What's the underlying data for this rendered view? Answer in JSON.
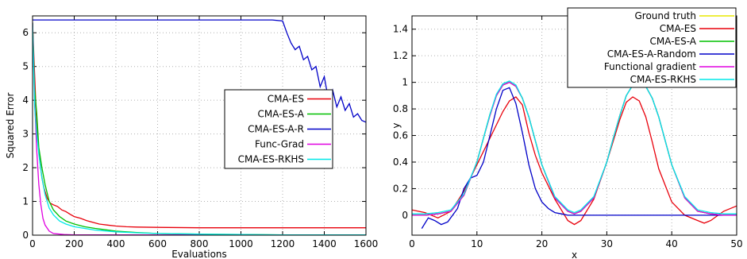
{
  "chart_data": [
    {
      "type": "line",
      "title": "",
      "xlabel": "Evaluations",
      "ylabel": "Squared Error",
      "xlim": [
        0,
        1600
      ],
      "ylim": [
        0,
        6.5
      ],
      "xticks": [
        "0",
        "200",
        "400",
        "600",
        "800",
        "1000",
        "1200",
        "1400",
        "1600"
      ],
      "yticks": [
        "0",
        "1",
        "2",
        "3",
        "4",
        "5",
        "6"
      ],
      "grid": true,
      "legend_position": "right",
      "series": [
        {
          "name": "CMA-ES",
          "color": "#e8000b",
          "x": [
            0,
            20,
            35,
            45,
            55,
            70,
            85,
            100,
            120,
            140,
            160,
            180,
            200,
            230,
            260,
            290,
            320,
            360,
            400,
            450,
            500,
            600,
            800,
            1000,
            1200,
            1400,
            1600
          ],
          "y": [
            6.3,
            3.2,
            2.2,
            1.7,
            1.4,
            1.1,
            0.95,
            0.9,
            0.85,
            0.75,
            0.7,
            0.62,
            0.55,
            0.5,
            0.43,
            0.38,
            0.33,
            0.3,
            0.27,
            0.25,
            0.24,
            0.23,
            0.22,
            0.22,
            0.22,
            0.22,
            0.22
          ]
        },
        {
          "name": "CMA-ES-A",
          "color": "#00c000",
          "x": [
            0,
            10,
            20,
            30,
            45,
            60,
            80,
            100,
            130,
            160,
            200,
            250,
            300,
            400,
            500,
            600,
            800,
            1000,
            1200,
            1400,
            1600
          ],
          "y": [
            6.3,
            4.35,
            3.6,
            2.6,
            2.0,
            1.5,
            1.0,
            0.75,
            0.55,
            0.42,
            0.33,
            0.25,
            0.2,
            0.12,
            0.08,
            0.05,
            0.03,
            0.02,
            0.01,
            0.01,
            0.01
          ]
        },
        {
          "name": "CMA-ES-A-R",
          "color": "#0000c8",
          "x": [
            0,
            200,
            400,
            600,
            800,
            1000,
            1150,
            1200,
            1220,
            1240,
            1260,
            1280,
            1300,
            1320,
            1340,
            1360,
            1380,
            1400,
            1420,
            1440,
            1460,
            1480,
            1500,
            1520,
            1540,
            1560,
            1580,
            1600
          ],
          "y": [
            6.38,
            6.38,
            6.38,
            6.38,
            6.38,
            6.38,
            6.38,
            6.35,
            6.0,
            5.7,
            5.5,
            5.6,
            5.2,
            5.3,
            4.9,
            5.0,
            4.4,
            4.7,
            4.0,
            4.3,
            3.8,
            4.1,
            3.7,
            3.9,
            3.5,
            3.6,
            3.4,
            3.35
          ]
        },
        {
          "name": "Func-Grad",
          "color": "#e000e0",
          "x": [
            0,
            10,
            20,
            30,
            40,
            50,
            60,
            80,
            100,
            150,
            200,
            400,
            800,
            1200,
            1600
          ],
          "y": [
            6.3,
            4.0,
            2.5,
            1.5,
            0.9,
            0.5,
            0.3,
            0.12,
            0.05,
            0.02,
            0.01,
            0.01,
            0.01,
            0.01,
            0.01
          ]
        },
        {
          "name": "CMA-ES-RKHS",
          "color": "#00e8e8",
          "x": [
            0,
            10,
            20,
            30,
            45,
            60,
            80,
            100,
            130,
            160,
            200,
            250,
            300,
            400,
            500,
            600,
            800,
            1000,
            1200,
            1400,
            1600
          ],
          "y": [
            6.3,
            3.8,
            3.0,
            2.4,
            1.7,
            1.2,
            0.8,
            0.6,
            0.42,
            0.33,
            0.25,
            0.2,
            0.15,
            0.1,
            0.07,
            0.05,
            0.03,
            0.02,
            0.01,
            0.01,
            0.01
          ]
        }
      ]
    },
    {
      "type": "line",
      "title": "",
      "xlabel": "x",
      "ylabel": "y",
      "xlim": [
        0,
        50
      ],
      "ylim": [
        -0.15,
        1.5
      ],
      "xticks": [
        "0",
        "10",
        "20",
        "30",
        "40",
        "50"
      ],
      "yticks": [
        "0",
        "0.2",
        "0.4",
        "0.6",
        "0.8",
        "1",
        "1.2",
        "1.4"
      ],
      "grid": true,
      "legend_position": "top-right",
      "series": [
        {
          "name": "Ground truth",
          "color": "#e8e800",
          "x": [
            0,
            2,
            4,
            6,
            8,
            10,
            11,
            12,
            13,
            14,
            15,
            16,
            17,
            18,
            19,
            20,
            22,
            24,
            25,
            26,
            28,
            30,
            31,
            32,
            33,
            34,
            35,
            36,
            37,
            38,
            39,
            40,
            42,
            44,
            46,
            48,
            50
          ],
          "y": [
            0,
            0,
            0.01,
            0.03,
            0.15,
            0.4,
            0.58,
            0.75,
            0.9,
            0.98,
            1.0,
            0.97,
            0.88,
            0.74,
            0.56,
            0.38,
            0.13,
            0.03,
            0.01,
            0.03,
            0.13,
            0.4,
            0.58,
            0.75,
            0.9,
            0.98,
            1.0,
            0.97,
            0.88,
            0.74,
            0.56,
            0.38,
            0.13,
            0.03,
            0.01,
            0,
            0
          ]
        },
        {
          "name": "CMA-ES",
          "color": "#e8000b",
          "x": [
            0,
            2,
            4,
            6,
            8,
            10,
            12,
            14,
            15,
            16,
            17,
            18,
            19,
            20,
            22,
            24,
            25,
            26,
            28,
            30,
            32,
            33,
            34,
            35,
            36,
            37,
            38,
            40,
            42,
            44,
            45,
            46,
            48,
            50
          ],
          "y": [
            0.04,
            0.02,
            -0.02,
            0.03,
            0.18,
            0.38,
            0.58,
            0.78,
            0.86,
            0.89,
            0.83,
            0.62,
            0.45,
            0.32,
            0.12,
            -0.04,
            -0.07,
            -0.04,
            0.12,
            0.4,
            0.72,
            0.85,
            0.89,
            0.86,
            0.74,
            0.55,
            0.35,
            0.1,
            0.0,
            -0.04,
            -0.06,
            -0.04,
            0.03,
            0.07
          ]
        },
        {
          "name": "CMA-ES-A",
          "color": "#00c000",
          "x": [
            0,
            2,
            4,
            6,
            8,
            10,
            11,
            12,
            13,
            14,
            15,
            16,
            17,
            18,
            19,
            20,
            22,
            24,
            25,
            26,
            28,
            30,
            31,
            32,
            33,
            34,
            35,
            36,
            37,
            38,
            39,
            40,
            42,
            44,
            46,
            48,
            50
          ],
          "y": [
            0,
            0,
            0.01,
            0.03,
            0.15,
            0.4,
            0.58,
            0.76,
            0.9,
            0.98,
            1.0,
            0.97,
            0.88,
            0.74,
            0.56,
            0.38,
            0.13,
            0.03,
            0.01,
            0.03,
            0.13,
            0.4,
            0.58,
            0.75,
            0.9,
            0.98,
            1.0,
            0.97,
            0.88,
            0.74,
            0.56,
            0.38,
            0.13,
            0.03,
            0.01,
            0,
            0
          ]
        },
        {
          "name": "CMA-ES-A-Random",
          "color": "#0000c8",
          "x": [
            1.5,
            2.5,
            3.5,
            4.5,
            5.5,
            7,
            8,
            9,
            10,
            11,
            12,
            13,
            14,
            15,
            16,
            17,
            18,
            19,
            20,
            21,
            22,
            23,
            24,
            25,
            30,
            40,
            50
          ],
          "y": [
            -0.1,
            -0.02,
            -0.04,
            -0.07,
            -0.05,
            0.05,
            0.2,
            0.28,
            0.3,
            0.4,
            0.6,
            0.8,
            0.94,
            0.96,
            0.84,
            0.62,
            0.38,
            0.2,
            0.1,
            0.05,
            0.02,
            0.01,
            0.0,
            0.0,
            0.0,
            0.0,
            0.0
          ]
        },
        {
          "name": "Functional gradient",
          "color": "#e000e0",
          "x": [
            0,
            2,
            4,
            6,
            8,
            10,
            11,
            12,
            13,
            14,
            15,
            16,
            17,
            18,
            19,
            20,
            22,
            24,
            25,
            26,
            28,
            30,
            31,
            32,
            33,
            34,
            35,
            36,
            37,
            38,
            39,
            40,
            42,
            44,
            46,
            48,
            50
          ],
          "y": [
            0,
            0,
            0.01,
            0.03,
            0.15,
            0.4,
            0.58,
            0.75,
            0.9,
            0.98,
            1.0,
            0.97,
            0.88,
            0.74,
            0.56,
            0.38,
            0.13,
            0.03,
            0.01,
            0.03,
            0.13,
            0.4,
            0.58,
            0.75,
            0.9,
            0.98,
            1.0,
            0.97,
            0.88,
            0.74,
            0.56,
            0.38,
            0.13,
            0.03,
            0.01,
            0,
            0
          ]
        },
        {
          "name": "CMA-ES-RKHS",
          "color": "#00e8e8",
          "x": [
            0,
            2,
            4,
            6,
            8,
            10,
            11,
            12,
            13,
            14,
            15,
            16,
            17,
            18,
            19,
            20,
            22,
            24,
            25,
            26,
            28,
            30,
            31,
            32,
            33,
            34,
            35,
            36,
            37,
            38,
            39,
            40,
            42,
            44,
            46,
            48,
            50
          ],
          "y": [
            0.01,
            0.01,
            0.02,
            0.04,
            0.16,
            0.4,
            0.58,
            0.76,
            0.91,
            0.99,
            1.01,
            0.98,
            0.88,
            0.74,
            0.56,
            0.38,
            0.14,
            0.04,
            0.02,
            0.04,
            0.14,
            0.4,
            0.58,
            0.75,
            0.9,
            0.98,
            1.0,
            0.97,
            0.88,
            0.74,
            0.56,
            0.38,
            0.14,
            0.04,
            0.02,
            0.01,
            0.01
          ]
        }
      ]
    }
  ]
}
